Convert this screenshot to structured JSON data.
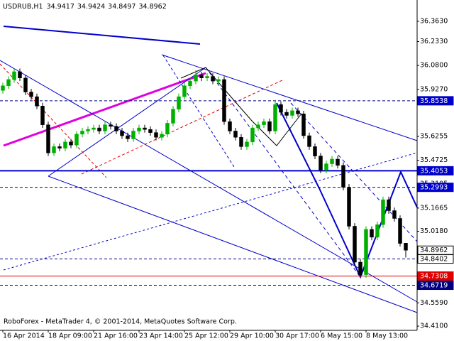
{
  "chart_data": {
    "type": "candlestick",
    "symbol": "USDRUB,H1",
    "footer": "RoboForex - MetaTrader 4, © 2001-2014, MetaQuotes Software Corp.",
    "categories": [
      "16 Apr 2014",
      null,
      null,
      null,
      null,
      null,
      null,
      null,
      "18 Apr 09:00",
      null,
      null,
      null,
      null,
      null,
      null,
      null,
      "21 Apr 16:00",
      null,
      null,
      null,
      null,
      null,
      null,
      null,
      "23 Apr 14:00",
      null,
      null,
      null,
      null,
      null,
      null,
      null,
      "25 Apr 12:00",
      null,
      null,
      null,
      null,
      null,
      null,
      null,
      "29 Apr 10:00",
      null,
      null,
      null,
      null,
      null,
      null,
      null,
      "30 Apr 17:00",
      null,
      null,
      null,
      null,
      null,
      null,
      null,
      "6 May 15:00",
      null,
      null,
      null,
      null,
      null,
      null,
      null,
      "8 May 13:00",
      null,
      null,
      null,
      null,
      null,
      null,
      null
    ],
    "open": [
      35.92,
      35.95,
      35.99,
      36.04,
      36.0,
      35.91,
      35.88,
      35.82,
      35.7,
      35.52,
      35.56,
      35.55,
      35.59,
      35.57,
      35.64,
      35.66,
      35.67,
      35.68,
      35.66,
      35.7,
      35.69,
      35.66,
      35.63,
      35.61,
      35.66,
      35.68,
      35.67,
      35.65,
      35.62,
      35.64,
      35.71,
      35.8,
      35.88,
      35.95,
      35.98,
      36.02,
      36.0,
      36.01,
      35.98,
      35.99,
      35.72,
      35.66,
      35.62,
      35.56,
      35.59,
      35.68,
      35.7,
      35.72,
      35.66,
      35.83,
      35.78,
      35.76,
      35.79,
      35.77,
      35.63,
      35.56,
      35.5,
      35.41,
      35.45,
      35.48,
      35.44,
      35.3,
      35.05,
      34.82,
      34.74,
      35.03,
      34.98,
      35.06,
      35.22,
      35.15,
      35.1,
      34.9417
    ],
    "high": [
      35.97,
      36.01,
      36.06,
      36.06,
      36.02,
      35.93,
      35.9,
      35.84,
      35.72,
      35.58,
      35.58,
      35.61,
      35.61,
      35.66,
      35.68,
      35.69,
      35.7,
      35.7,
      35.72,
      35.72,
      35.71,
      35.68,
      35.65,
      35.68,
      35.7,
      35.7,
      35.69,
      35.67,
      35.66,
      35.73,
      35.82,
      35.9,
      35.97,
      36.0,
      36.05,
      36.04,
      36.03,
      36.03,
      36.01,
      36.01,
      35.74,
      35.68,
      35.64,
      35.61,
      35.7,
      35.72,
      35.74,
      35.74,
      35.86,
      35.85,
      35.8,
      35.81,
      35.81,
      35.79,
      35.65,
      35.58,
      35.52,
      35.47,
      35.5,
      35.5,
      35.46,
      35.32,
      35.07,
      34.84,
      35.05,
      35.05,
      35.08,
      35.24,
      35.24,
      35.17,
      35.12,
      34.9424
    ],
    "low": [
      35.9,
      35.93,
      35.97,
      35.98,
      35.89,
      35.86,
      35.8,
      35.68,
      35.5,
      35.5,
      35.53,
      35.53,
      35.55,
      35.55,
      35.62,
      35.64,
      35.65,
      35.64,
      35.64,
      35.67,
      35.64,
      35.61,
      35.59,
      35.59,
      35.64,
      35.65,
      35.63,
      35.6,
      35.6,
      35.62,
      35.69,
      35.78,
      35.86,
      35.93,
      35.96,
      35.98,
      35.98,
      35.96,
      35.96,
      35.7,
      35.64,
      35.6,
      35.54,
      35.54,
      35.57,
      35.66,
      35.68,
      35.64,
      35.64,
      35.76,
      35.74,
      35.74,
      35.75,
      35.61,
      35.54,
      35.48,
      35.39,
      35.39,
      35.43,
      35.42,
      35.28,
      35.03,
      34.8,
      34.73,
      34.72,
      34.96,
      34.96,
      35.04,
      35.13,
      35.08,
      34.92,
      34.8497
    ],
    "close": [
      35.95,
      35.99,
      36.04,
      36.0,
      35.91,
      35.88,
      35.82,
      35.7,
      35.52,
      35.56,
      35.55,
      35.59,
      35.57,
      35.64,
      35.66,
      35.67,
      35.68,
      35.66,
      35.7,
      35.69,
      35.66,
      35.63,
      35.61,
      35.66,
      35.68,
      35.67,
      35.65,
      35.62,
      35.64,
      35.71,
      35.8,
      35.88,
      35.95,
      35.98,
      36.02,
      36.0,
      36.01,
      35.98,
      35.99,
      35.72,
      35.66,
      35.62,
      35.56,
      35.59,
      35.68,
      35.7,
      35.72,
      35.66,
      35.83,
      35.78,
      35.76,
      35.79,
      35.77,
      35.63,
      35.56,
      35.5,
      35.41,
      35.45,
      35.48,
      35.44,
      35.3,
      35.05,
      34.82,
      34.74,
      35.03,
      34.98,
      35.06,
      35.22,
      35.15,
      35.1,
      34.94,
      34.8962
    ],
    "up_color": "#00b000",
    "down_color": "#000000",
    "ylim": [
      34.383,
      36.4995
    ],
    "yticks": [
      {
        "value": 36.363,
        "label": "36.3630"
      },
      {
        "value": 36.233,
        "label": "36.2330"
      },
      {
        "value": 36.08,
        "label": "36.0800"
      },
      {
        "value": 35.927,
        "label": "35.9270"
      },
      {
        "value": 35.6255,
        "label": "35.6255"
      },
      {
        "value": 35.4725,
        "label": "35.4725"
      },
      {
        "value": 35.3195,
        "label": "35.3195"
      },
      {
        "value": 35.1665,
        "label": "35.1665"
      },
      {
        "value": 35.018,
        "label": "35.0180"
      },
      {
        "value": 34.559,
        "label": "34.5590"
      },
      {
        "value": 34.41,
        "label": "34.4100"
      }
    ],
    "levels": [
      {
        "value": 35.8538,
        "line": "dashed",
        "color": "#000080",
        "label_bg": "#0000cc"
      },
      {
        "value": 35.4053,
        "line": "solid",
        "color": "#0000cc",
        "label_bg": "#0000cc"
      },
      {
        "value": 35.2993,
        "line": "dashed",
        "color": "#000080",
        "label_bg": "#0000cc"
      },
      {
        "value": 34.8962,
        "line": "none",
        "color": "#000000",
        "label_bg": "#ffffff"
      },
      {
        "value": 34.8402,
        "line": "dashed",
        "color": "#000080",
        "label_bg": "#ffffff"
      },
      {
        "value": 34.7308,
        "line": "solid",
        "color": "#e00000",
        "label_bg": "#e00000"
      },
      {
        "value": 34.6719,
        "line": "dashed",
        "color": "#000080",
        "label_bg": "#000080"
      }
    ]
  }
}
